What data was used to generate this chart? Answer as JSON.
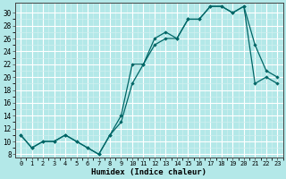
{
  "xlabel": "Humidex (Indice chaleur)",
  "bg_color": "#b3e8e8",
  "line_color": "#006666",
  "grid_major_color": "#ffffff",
  "grid_minor_color": "#d0f0f0",
  "xlim": [
    -0.5,
    23.5
  ],
  "ylim": [
    7.5,
    31.5
  ],
  "xticks": [
    0,
    1,
    2,
    3,
    4,
    5,
    6,
    7,
    8,
    9,
    10,
    11,
    12,
    13,
    14,
    15,
    16,
    17,
    18,
    19,
    20,
    21,
    22,
    23
  ],
  "yticks": [
    8,
    10,
    12,
    14,
    16,
    18,
    20,
    22,
    24,
    26,
    28,
    30
  ],
  "line1_x": [
    0,
    1,
    2,
    3,
    4,
    5,
    6,
    7,
    8,
    9,
    10,
    11,
    12,
    13,
    14,
    15,
    16,
    17,
    18,
    19,
    20,
    21,
    22,
    23
  ],
  "line1_y": [
    11,
    9,
    10,
    10,
    11,
    10,
    9,
    8,
    11,
    14,
    22,
    22,
    25,
    26,
    26,
    29,
    29,
    31,
    31,
    30,
    31,
    25,
    21,
    20
  ],
  "line2_x": [
    0,
    1,
    2,
    3,
    4,
    5,
    6,
    7,
    8,
    9,
    10,
    11,
    12,
    13,
    14,
    15,
    16,
    17,
    18,
    19,
    20,
    21,
    22,
    23
  ],
  "line2_y": [
    11,
    9,
    10,
    10,
    11,
    10,
    9,
    8,
    11,
    13,
    19,
    22,
    26,
    27,
    26,
    29,
    29,
    31,
    31,
    30,
    31,
    19,
    20,
    19
  ]
}
